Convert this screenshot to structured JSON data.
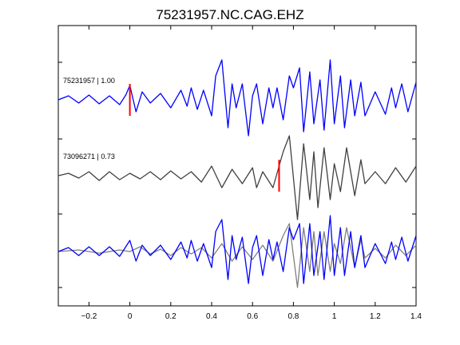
{
  "chart_data": {
    "type": "line",
    "title": "75231957.NC.CAG.EHZ",
    "xlabel": "",
    "ylabel": "",
    "xlim": [
      -0.35,
      1.4
    ],
    "x_ticks": [
      {
        "value": -0.2,
        "label": "−0.2"
      },
      {
        "value": 0,
        "label": "0"
      },
      {
        "value": 0.2,
        "label": "0.2"
      },
      {
        "value": 0.4,
        "label": "0.4"
      },
      {
        "value": 0.6,
        "label": "0.6"
      },
      {
        "value": 0.8,
        "label": "0.8"
      },
      {
        "value": 1,
        "label": "1"
      },
      {
        "value": 1.2,
        "label": "1.2"
      },
      {
        "value": 1.4,
        "label": "1.4"
      }
    ],
    "grid": false,
    "colors": {
      "blue": "#0000ff",
      "gray": "#404040",
      "overlay_gray": "#808080",
      "pick_red": "#ff0000"
    },
    "traces": [
      {
        "label": "75231957 | 1.00",
        "color": "#0000ff",
        "pick_time": 0.0,
        "points": [
          [
            -0.35,
            0.0
          ],
          [
            -0.3,
            0.05
          ],
          [
            -0.25,
            -0.04
          ],
          [
            -0.2,
            0.06
          ],
          [
            -0.15,
            -0.05
          ],
          [
            -0.1,
            0.05
          ],
          [
            -0.05,
            -0.06
          ],
          [
            -0.02,
            0.06
          ],
          [
            0.0,
            0.18
          ],
          [
            0.03,
            -0.15
          ],
          [
            0.06,
            0.1
          ],
          [
            0.1,
            -0.04
          ],
          [
            0.15,
            0.08
          ],
          [
            0.2,
            -0.1
          ],
          [
            0.25,
            0.12
          ],
          [
            0.28,
            -0.08
          ],
          [
            0.3,
            0.15
          ],
          [
            0.33,
            -0.12
          ],
          [
            0.36,
            0.12
          ],
          [
            0.4,
            -0.2
          ],
          [
            0.42,
            0.3
          ],
          [
            0.45,
            0.5
          ],
          [
            0.48,
            -0.35
          ],
          [
            0.5,
            0.2
          ],
          [
            0.52,
            -0.1
          ],
          [
            0.55,
            0.2
          ],
          [
            0.58,
            -0.45
          ],
          [
            0.6,
            0.05
          ],
          [
            0.62,
            0.2
          ],
          [
            0.65,
            -0.3
          ],
          [
            0.68,
            0.15
          ],
          [
            0.7,
            -0.1
          ],
          [
            0.72,
            0.15
          ],
          [
            0.75,
            -0.25
          ],
          [
            0.78,
            0.3
          ],
          [
            0.8,
            0.15
          ],
          [
            0.83,
            0.4
          ],
          [
            0.85,
            -0.4
          ],
          [
            0.88,
            0.35
          ],
          [
            0.9,
            -0.3
          ],
          [
            0.93,
            0.25
          ],
          [
            0.95,
            -0.38
          ],
          [
            0.98,
            0.5
          ],
          [
            1.0,
            -0.3
          ],
          [
            1.03,
            0.3
          ],
          [
            1.05,
            -0.35
          ],
          [
            1.08,
            0.25
          ],
          [
            1.1,
            -0.2
          ],
          [
            1.13,
            0.22
          ],
          [
            1.15,
            -0.2
          ],
          [
            1.2,
            0.1
          ],
          [
            1.25,
            -0.18
          ],
          [
            1.28,
            0.15
          ],
          [
            1.3,
            -0.1
          ],
          [
            1.33,
            0.2
          ],
          [
            1.36,
            -0.15
          ],
          [
            1.4,
            0.22
          ]
        ]
      },
      {
        "label": "73096271 | 0.73",
        "color": "#404040",
        "pick_time": 0.73,
        "points": [
          [
            -0.35,
            0.0
          ],
          [
            -0.3,
            0.03
          ],
          [
            -0.25,
            -0.03
          ],
          [
            -0.2,
            0.05
          ],
          [
            -0.15,
            -0.06
          ],
          [
            -0.1,
            0.05
          ],
          [
            -0.05,
            -0.05
          ],
          [
            0.0,
            0.03
          ],
          [
            0.05,
            -0.04
          ],
          [
            0.1,
            0.05
          ],
          [
            0.15,
            -0.05
          ],
          [
            0.2,
            0.06
          ],
          [
            0.25,
            -0.04
          ],
          [
            0.3,
            0.05
          ],
          [
            0.35,
            -0.08
          ],
          [
            0.4,
            0.12
          ],
          [
            0.45,
            -0.15
          ],
          [
            0.5,
            0.08
          ],
          [
            0.55,
            -0.1
          ],
          [
            0.6,
            0.1
          ],
          [
            0.62,
            -0.15
          ],
          [
            0.65,
            0.05
          ],
          [
            0.7,
            -0.15
          ],
          [
            0.75,
            0.3
          ],
          [
            0.78,
            0.5
          ],
          [
            0.82,
            -0.55
          ],
          [
            0.85,
            0.4
          ],
          [
            0.88,
            -0.3
          ],
          [
            0.9,
            0.3
          ],
          [
            0.92,
            -0.4
          ],
          [
            0.95,
            0.35
          ],
          [
            0.98,
            -0.3
          ],
          [
            1.0,
            0.15
          ],
          [
            1.03,
            -0.2
          ],
          [
            1.06,
            0.35
          ],
          [
            1.1,
            -0.25
          ],
          [
            1.13,
            0.2
          ],
          [
            1.15,
            -0.1
          ],
          [
            1.2,
            0.05
          ],
          [
            1.25,
            -0.1
          ],
          [
            1.3,
            0.1
          ],
          [
            1.35,
            -0.08
          ],
          [
            1.4,
            0.12
          ]
        ]
      },
      {
        "label": "",
        "color": "#0000ff",
        "pick_time": null,
        "points": [
          [
            -0.35,
            0.0
          ],
          [
            -0.3,
            0.05
          ],
          [
            -0.25,
            -0.05
          ],
          [
            -0.2,
            0.06
          ],
          [
            -0.15,
            -0.05
          ],
          [
            -0.1,
            0.06
          ],
          [
            -0.05,
            -0.06
          ],
          [
            0.0,
            0.14
          ],
          [
            0.03,
            -0.12
          ],
          [
            0.06,
            0.08
          ],
          [
            0.1,
            -0.05
          ],
          [
            0.15,
            0.08
          ],
          [
            0.2,
            -0.1
          ],
          [
            0.25,
            0.12
          ],
          [
            0.28,
            -0.08
          ],
          [
            0.3,
            0.14
          ],
          [
            0.33,
            -0.12
          ],
          [
            0.36,
            0.1
          ],
          [
            0.4,
            -0.2
          ],
          [
            0.42,
            0.25
          ],
          [
            0.45,
            0.4
          ],
          [
            0.48,
            -0.35
          ],
          [
            0.5,
            0.2
          ],
          [
            0.52,
            -0.1
          ],
          [
            0.55,
            0.18
          ],
          [
            0.58,
            -0.4
          ],
          [
            0.6,
            0.05
          ],
          [
            0.62,
            0.2
          ],
          [
            0.65,
            -0.3
          ],
          [
            0.68,
            0.15
          ],
          [
            0.7,
            -0.1
          ],
          [
            0.72,
            0.12
          ],
          [
            0.75,
            -0.25
          ],
          [
            0.78,
            0.3
          ],
          [
            0.8,
            0.15
          ],
          [
            0.83,
            0.35
          ],
          [
            0.85,
            -0.4
          ],
          [
            0.88,
            0.35
          ],
          [
            0.9,
            -0.3
          ],
          [
            0.93,
            0.25
          ],
          [
            0.95,
            -0.35
          ],
          [
            0.98,
            0.45
          ],
          [
            1.0,
            -0.3
          ],
          [
            1.03,
            0.3
          ],
          [
            1.05,
            -0.3
          ],
          [
            1.08,
            0.25
          ],
          [
            1.1,
            -0.2
          ],
          [
            1.13,
            0.2
          ],
          [
            1.15,
            -0.2
          ],
          [
            1.2,
            0.1
          ],
          [
            1.25,
            -0.15
          ],
          [
            1.28,
            0.12
          ],
          [
            1.3,
            -0.1
          ],
          [
            1.33,
            0.18
          ],
          [
            1.36,
            -0.12
          ],
          [
            1.4,
            0.2
          ]
        ]
      },
      {
        "label": "",
        "color": "#808080",
        "pick_time": null,
        "points": [
          [
            -0.35,
            0.0
          ],
          [
            -0.25,
            0.02
          ],
          [
            -0.15,
            -0.02
          ],
          [
            -0.05,
            0.02
          ],
          [
            0.0,
            0.0
          ],
          [
            0.05,
            0.06
          ],
          [
            0.1,
            -0.03
          ],
          [
            0.15,
            0.03
          ],
          [
            0.2,
            -0.05
          ],
          [
            0.25,
            0.05
          ],
          [
            0.3,
            -0.03
          ],
          [
            0.35,
            0.05
          ],
          [
            0.4,
            -0.08
          ],
          [
            0.45,
            0.1
          ],
          [
            0.5,
            -0.12
          ],
          [
            0.55,
            0.06
          ],
          [
            0.6,
            -0.1
          ],
          [
            0.65,
            0.08
          ],
          [
            0.7,
            -0.12
          ],
          [
            0.75,
            0.2
          ],
          [
            0.78,
            0.35
          ],
          [
            0.82,
            -0.45
          ],
          [
            0.85,
            0.3
          ],
          [
            0.88,
            -0.25
          ],
          [
            0.9,
            0.25
          ],
          [
            0.92,
            -0.3
          ],
          [
            0.95,
            0.25
          ],
          [
            0.98,
            -0.25
          ],
          [
            1.0,
            0.1
          ],
          [
            1.03,
            -0.15
          ],
          [
            1.06,
            0.3
          ],
          [
            1.1,
            -0.2
          ],
          [
            1.13,
            0.15
          ],
          [
            1.15,
            -0.08
          ],
          [
            1.2,
            0.04
          ],
          [
            1.25,
            -0.08
          ],
          [
            1.3,
            0.08
          ],
          [
            1.35,
            -0.05
          ],
          [
            1.4,
            0.08
          ]
        ]
      }
    ]
  }
}
